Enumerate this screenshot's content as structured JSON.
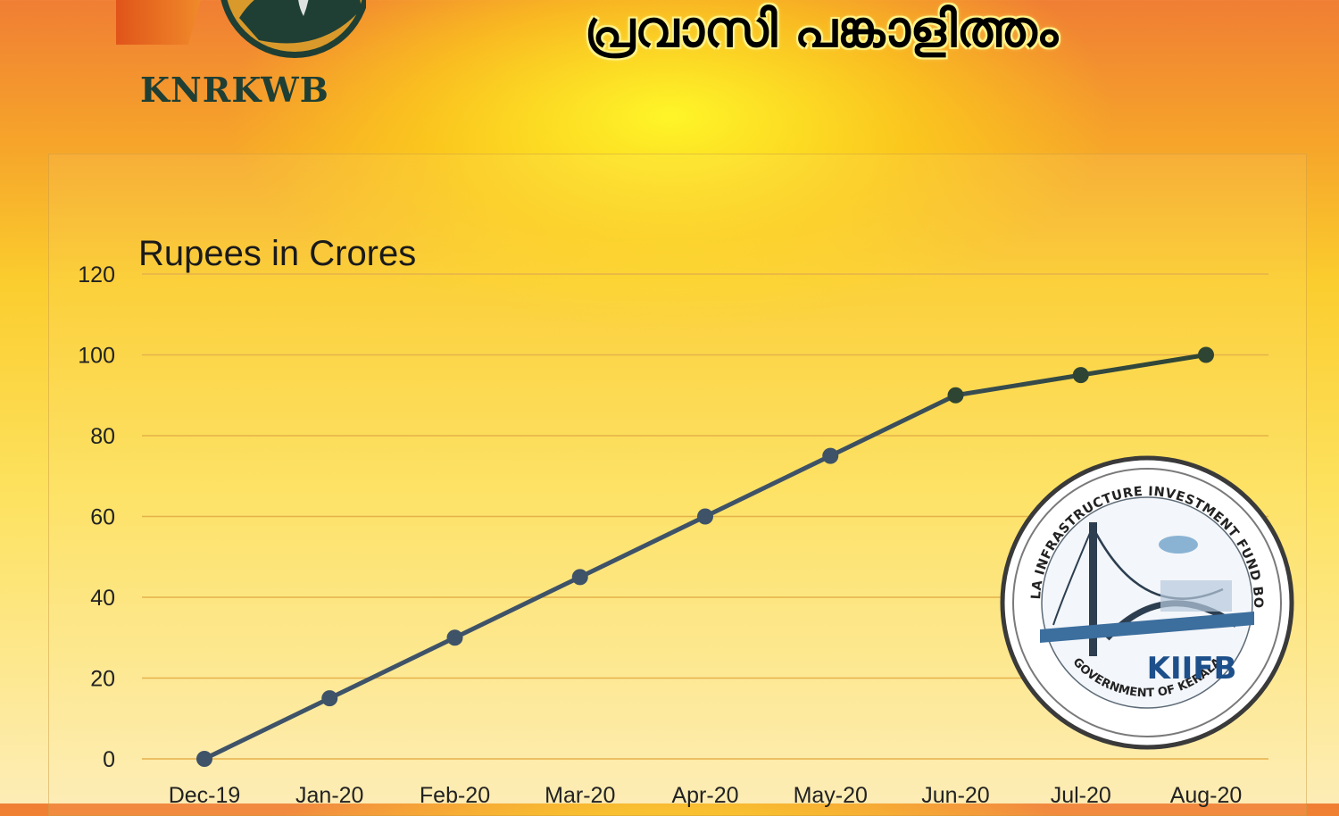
{
  "header": {
    "title_ml": "പ്രവാസി പങ്കാളിത്തം"
  },
  "logos": {
    "knrkwb": {
      "text": "KNRKWB"
    },
    "kiifb": {
      "ring_top": "KERALA INFRASTRUCTURE INVESTMENT FUND BOARD",
      "ring_bottom": "GOVERNMENT OF KERALA",
      "wordmark": "KIIFB"
    }
  },
  "colors": {
    "line": "#3e5268",
    "line_end": "#2f4533",
    "grid": "#e5b24b",
    "tick_text": "#222222",
    "brand_green": "#1f3f34"
  },
  "chart_data": {
    "type": "line",
    "title": "Rupees in Crores",
    "xlabel": "",
    "ylabel": "",
    "categories": [
      "Dec-19",
      "Jan-20",
      "Feb-20",
      "Mar-20",
      "Apr-20",
      "May-20",
      "Jun-20",
      "Jul-20",
      "Aug-20"
    ],
    "series": [
      {
        "values": [
          0,
          15,
          30,
          45,
          60,
          75,
          90,
          95,
          100
        ]
      }
    ],
    "ylim": [
      0,
      120
    ],
    "yticks": [
      "0",
      "20",
      "40",
      "60",
      "80",
      "100",
      "120"
    ],
    "grid": true,
    "markers": true,
    "legend": "none"
  }
}
